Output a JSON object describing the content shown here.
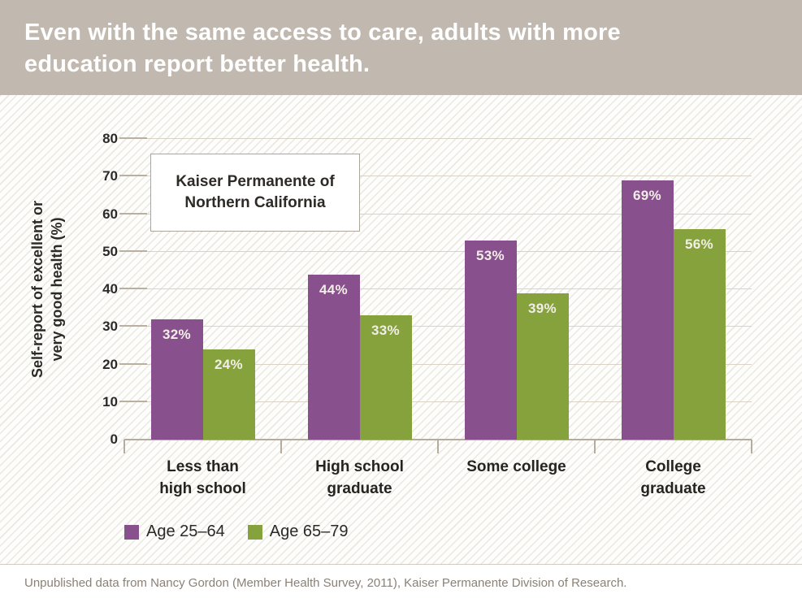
{
  "header": {
    "title": "Even with the same access to care, adults with more\neducation report better health.",
    "bg_color": "#c1b9b0",
    "text_color": "#ffffff"
  },
  "chart_data": {
    "type": "bar",
    "annotation": "Kaiser Permanente of\nNorthern California",
    "categories": [
      "Less than\nhigh school",
      "High school\ngraduate",
      "Some college",
      "College\ngraduate"
    ],
    "series": [
      {
        "name": "Age 25–64",
        "color": "#88518d",
        "values": [
          32,
          44,
          53,
          69
        ],
        "labels": [
          "32%",
          "44%",
          "53%",
          "69%"
        ]
      },
      {
        "name": "Age 65–79",
        "color": "#85a23d",
        "values": [
          24,
          33,
          39,
          56
        ],
        "labels": [
          "24%",
          "33%",
          "39%",
          "56%"
        ]
      }
    ],
    "xlabel": "",
    "ylabel": "Self-report of excellent or\nvery good health (%)",
    "ylim": [
      0,
      80
    ],
    "yticks": [
      0,
      10,
      20,
      30,
      40,
      50,
      60,
      70,
      80
    ],
    "grid": true,
    "legend_position": "bottom-left",
    "value_label_color": "#f2eee7",
    "gridline_color": "#d9d2c6",
    "axis_color": "#b5ac9e"
  },
  "footer": {
    "source": "Unpublished data from Nancy Gordon (Member Health Survey, 2011), Kaiser Permanente Division of Research."
  }
}
